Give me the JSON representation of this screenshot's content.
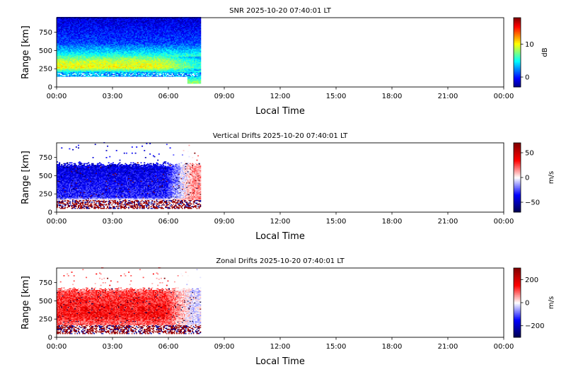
{
  "chart_data": [
    {
      "type": "heatmap",
      "title": "SNR 2025-10-20 07:40:01 LT",
      "xlabel": "Local Time",
      "ylabel": "Range [km]",
      "xlim": [
        0,
        24
      ],
      "ylim": [
        0,
        950
      ],
      "x_ticks": [
        "00:00",
        "03:00",
        "06:00",
        "09:00",
        "12:00",
        "15:00",
        "18:00",
        "21:00",
        "00:00"
      ],
      "y_ticks": [
        "0",
        "250",
        "500",
        "750"
      ],
      "data_extent_hours": [
        0,
        7.68
      ],
      "colorbar": {
        "label": "dB",
        "colormap": "jet",
        "range": [
          -3,
          18
        ],
        "ticks": [
          "0",
          "10"
        ]
      },
      "colorbar_tick_values": [
        0,
        10
      ],
      "profile": [
        {
          "range_km": 60,
          "value": 8
        },
        {
          "range_km": 180,
          "value": 2
        },
        {
          "range_km": 260,
          "value": 10
        },
        {
          "range_km": 350,
          "value": 9
        },
        {
          "range_km": 450,
          "value": 5
        },
        {
          "range_km": 600,
          "value": 1
        },
        {
          "range_km": 900,
          "value": -1
        }
      ]
    },
    {
      "type": "heatmap",
      "title": "Vertical Drifts 2025-10-20 07:40:01 LT",
      "xlabel": "Local Time",
      "ylabel": "Range [km]",
      "xlim": [
        0,
        24
      ],
      "ylim": [
        0,
        950
      ],
      "x_ticks": [
        "00:00",
        "03:00",
        "06:00",
        "09:00",
        "12:00",
        "15:00",
        "18:00",
        "21:00",
        "00:00"
      ],
      "y_ticks": [
        "0",
        "250",
        "500",
        "750"
      ],
      "data_extent_hours": [
        0,
        7.68
      ],
      "colorbar": {
        "label": "m/s",
        "colormap": "seismic",
        "range": [
          -70,
          70
        ],
        "ticks": [
          "50",
          "0",
          "−50"
        ]
      },
      "colorbar_tick_values": [
        50,
        0,
        -50
      ],
      "profile": [
        {
          "range_km": 100,
          "value": 60
        },
        {
          "range_km": 200,
          "value": -30
        },
        {
          "range_km": 400,
          "value": -35
        },
        {
          "range_km": 600,
          "value": -40
        }
      ]
    },
    {
      "type": "heatmap",
      "title": "Zonal Drifts 2025-10-20 07:40:01 LT",
      "xlabel": "Local Time",
      "ylabel": "Range [km]",
      "xlim": [
        0,
        24
      ],
      "ylim": [
        0,
        950
      ],
      "x_ticks": [
        "00:00",
        "03:00",
        "06:00",
        "09:00",
        "12:00",
        "15:00",
        "18:00",
        "21:00",
        "00:00"
      ],
      "y_ticks": [
        "0",
        "250",
        "500",
        "750"
      ],
      "data_extent_hours": [
        0,
        7.68
      ],
      "colorbar": {
        "label": "m/s",
        "colormap": "seismic",
        "range": [
          -300,
          300
        ],
        "ticks": [
          "200",
          "0",
          "−200"
        ]
      },
      "colorbar_tick_values": [
        200,
        0,
        -200
      ],
      "profile": [
        {
          "range_km": 100,
          "value": 50
        },
        {
          "range_km": 300,
          "value": 150
        },
        {
          "range_km": 500,
          "value": 130
        },
        {
          "range_km": 650,
          "value": 100
        }
      ]
    }
  ]
}
